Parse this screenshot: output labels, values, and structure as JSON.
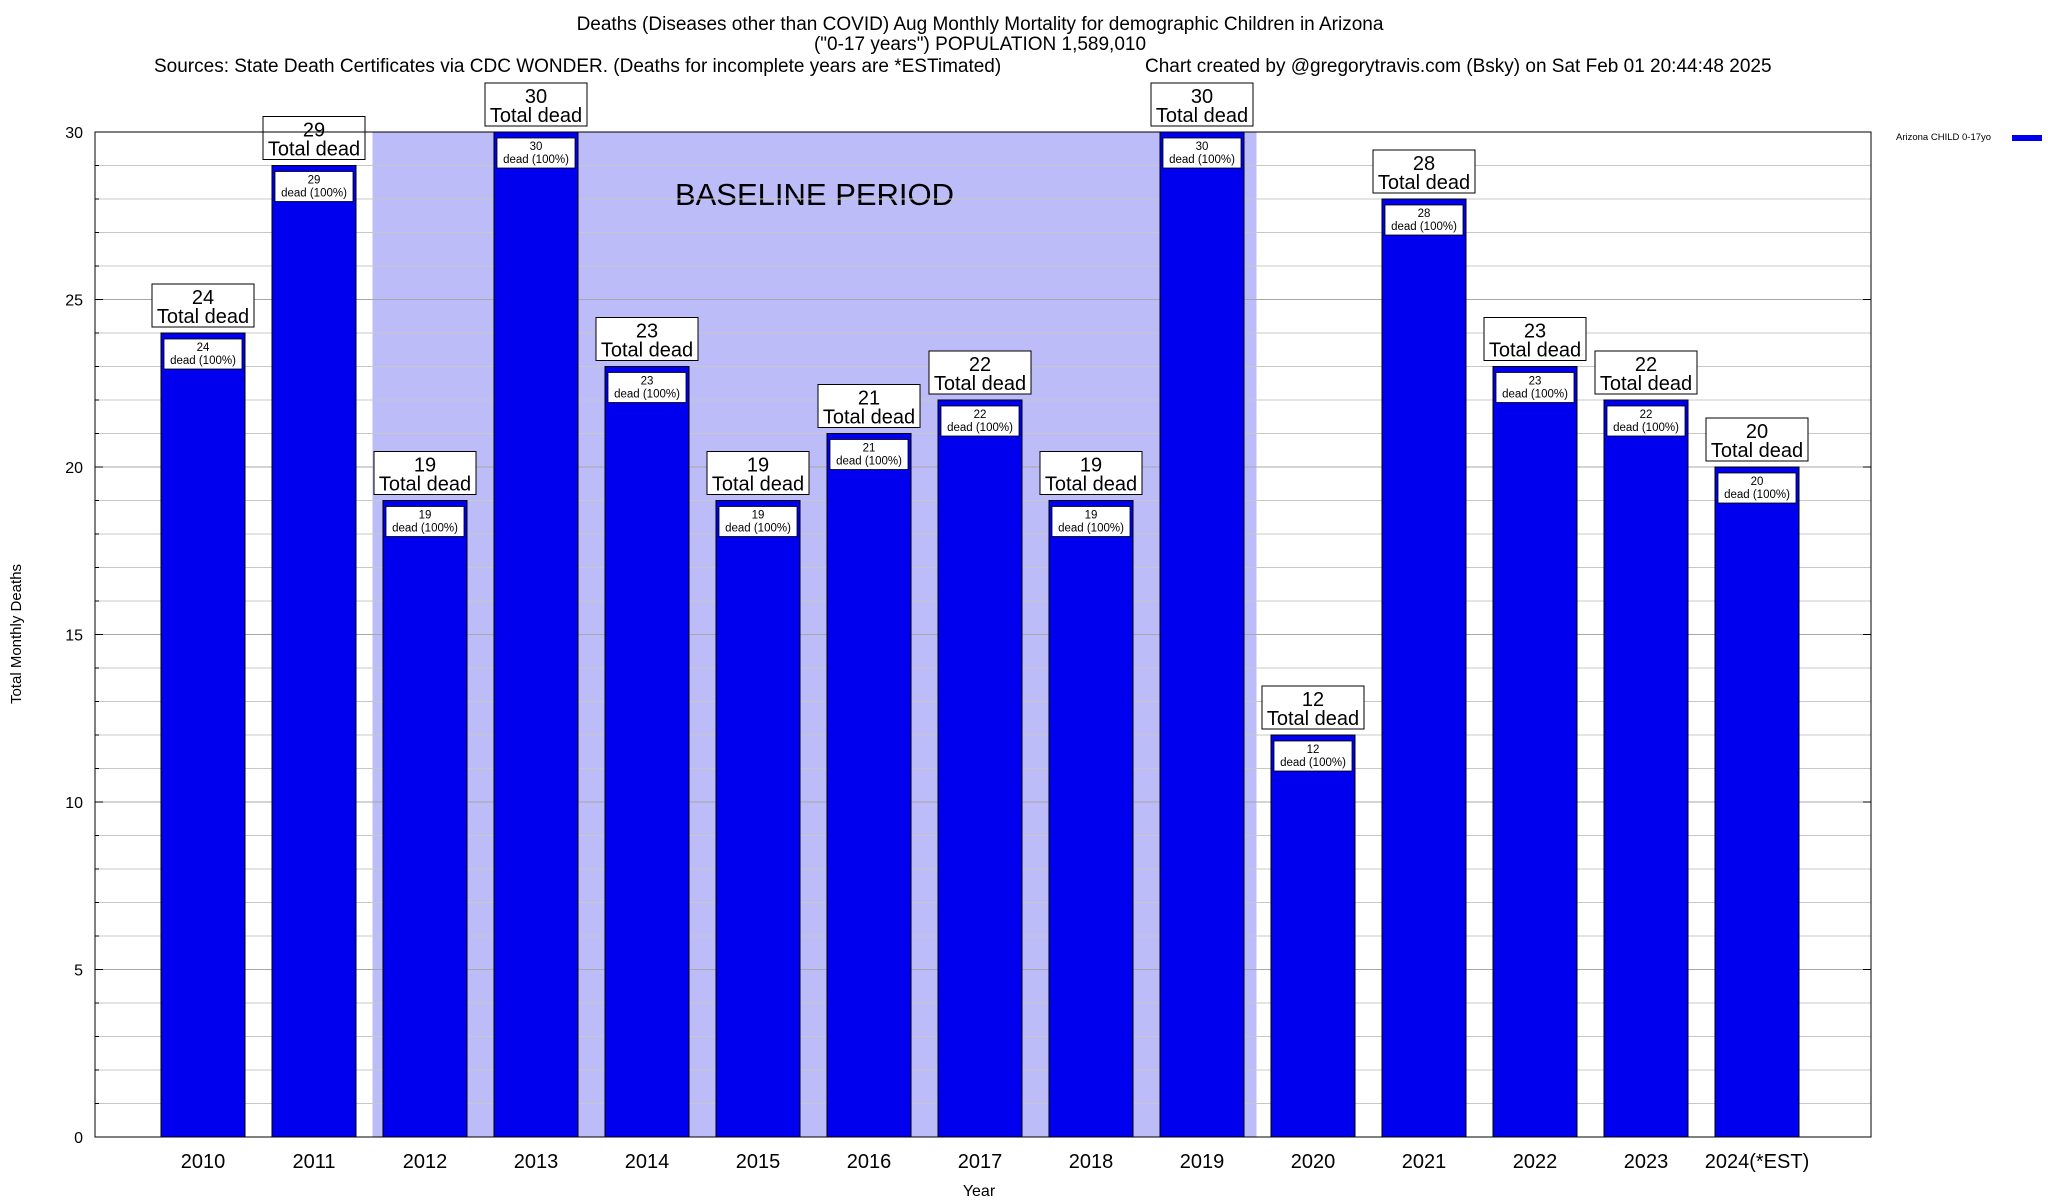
{
  "chart_data": {
    "type": "bar",
    "title": "Deaths (Diseases other than COVID) Aug Monthly Mortality for demographic Children in Arizona",
    "title_line2": "(\"0-17 years\") POPULATION 1,589,010",
    "subtitle_left": "Sources: State Death Certificates via CDC WONDER. (Deaths for incomplete years are *ESTimated)",
    "subtitle_right": "Chart created by @gregorytravis.com (Bsky) on Sat Feb 01 20:44:48 2025",
    "xlabel": "Year",
    "ylabel": "Total Monthly Deaths",
    "ylim": [
      0,
      30
    ],
    "yticks": [
      0,
      5,
      10,
      15,
      20,
      25,
      30
    ],
    "grid": true,
    "categories": [
      "2010",
      "2011",
      "2012",
      "2013",
      "2014",
      "2015",
      "2016",
      "2017",
      "2018",
      "2019",
      "2020",
      "2021",
      "2022",
      "2023",
      "2024(*EST)"
    ],
    "series": [
      {
        "name": "Arizona CHILD 0-17yo",
        "color": "#0000ee",
        "values": [
          24,
          29,
          19,
          30,
          23,
          19,
          21,
          22,
          19,
          30,
          12,
          28,
          23,
          22,
          20
        ]
      }
    ],
    "bar_label_top": "Total dead",
    "bar_label_inner": "dead (100%)",
    "baseline": {
      "label": "BASELINE PERIOD",
      "start": "2012",
      "end": "2019",
      "color": "#bcbcf8"
    },
    "legend": {
      "placement": "top-right",
      "label": "Arizona CHILD 0-17yo"
    }
  }
}
